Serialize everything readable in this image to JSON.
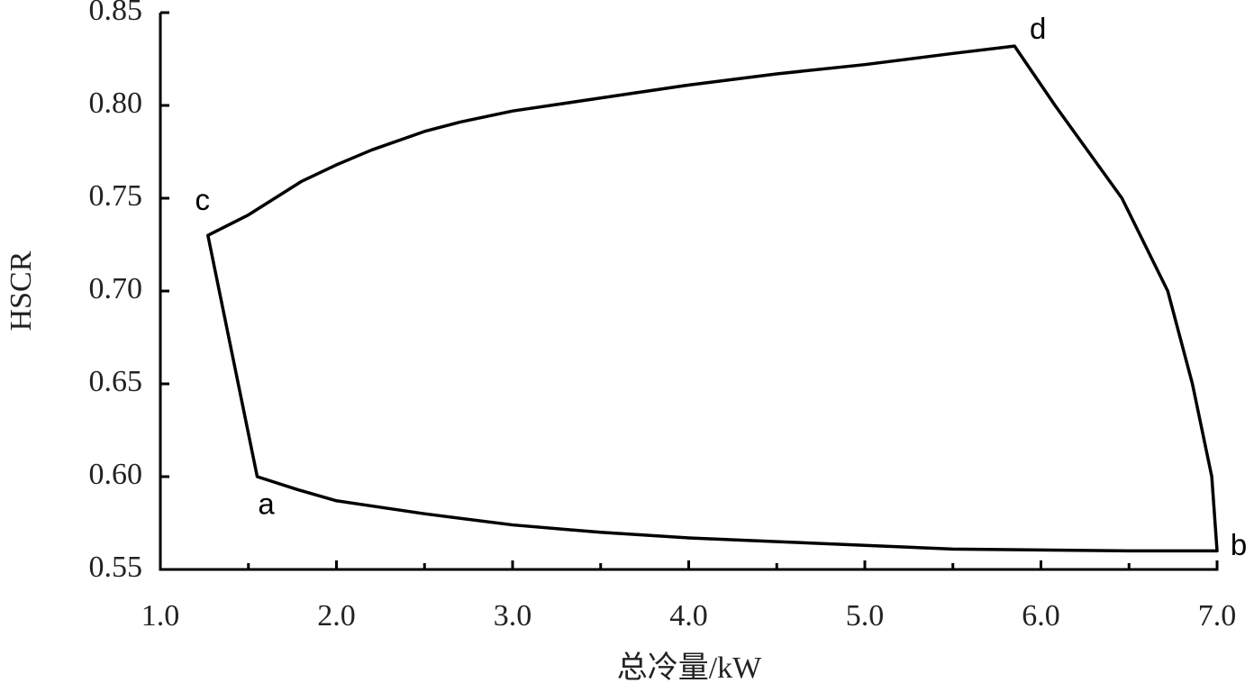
{
  "chart_data": {
    "type": "line",
    "xlabel": "总冷量/kW",
    "ylabel": "HSCR",
    "xlim": [
      1.0,
      7.0
    ],
    "ylim": [
      0.55,
      0.85
    ],
    "xticks": [
      {
        "value": 1.0,
        "label": "1.0"
      },
      {
        "value": 2.0,
        "label": "2.0"
      },
      {
        "value": 3.0,
        "label": "3.0"
      },
      {
        "value": 4.0,
        "label": "4.0"
      },
      {
        "value": 5.0,
        "label": "5.0"
      },
      {
        "value": 6.0,
        "label": "6.0"
      },
      {
        "value": 7.0,
        "label": "7.0"
      }
    ],
    "xminorticks": [
      1.5,
      2.5,
      3.5,
      4.5,
      5.5,
      6.5
    ],
    "yticks": [
      0.55,
      {
        "value": 0.6,
        "label": "0.60"
      },
      0.65,
      {
        "value": 0.7,
        "label": "0.70"
      },
      0.75,
      {
        "value": 0.8,
        "label": "0.80"
      },
      0.85
    ],
    "color": "#000000",
    "x": [
      1.55,
      1.78,
      2.0,
      2.5,
      3.0,
      3.5,
      4.0,
      4.5,
      5.0,
      5.5,
      6.0,
      6.5,
      7.0,
      6.97,
      6.86,
      6.72,
      6.46,
      6.08,
      5.85,
      5.5,
      5.0,
      4.5,
      4.0,
      3.5,
      3.0,
      2.7,
      2.5,
      2.2,
      2.0,
      1.8,
      1.5,
      1.27
    ],
    "values": [
      0.6,
      0.593,
      0.587,
      0.58,
      0.574,
      0.57,
      0.567,
      0.565,
      0.563,
      0.561,
      0.5605,
      0.56,
      0.56,
      0.6,
      0.65,
      0.7,
      0.75,
      0.8,
      0.832,
      0.828,
      0.822,
      0.817,
      0.811,
      0.804,
      0.797,
      0.791,
      0.786,
      0.776,
      0.768,
      0.759,
      0.741,
      0.73
    ],
    "labels": [
      "a",
      null,
      null,
      null,
      null,
      null,
      null,
      null,
      null,
      null,
      null,
      null,
      "b",
      null,
      null,
      null,
      null,
      null,
      "d",
      null,
      null,
      null,
      null,
      null,
      null,
      null,
      null,
      null,
      null,
      null,
      null,
      "c"
    ]
  }
}
